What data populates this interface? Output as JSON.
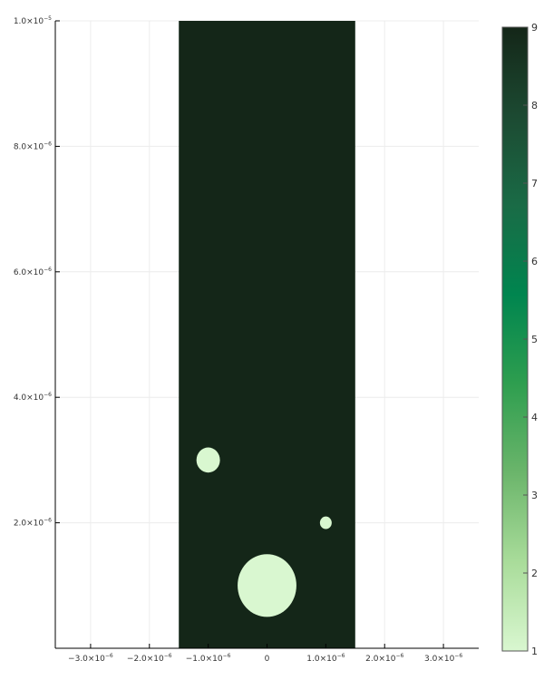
{
  "chart_data": {
    "type": "heatmap",
    "title": "",
    "xlabel": "",
    "ylabel": "",
    "xlim": [
      -3.6e-06,
      3.6e-06
    ],
    "ylim": [
      0,
      1e-05
    ],
    "grid": true,
    "x_ticks": [
      {
        "value": -3e-06,
        "mantissa": "−3.0×10",
        "exp": "−6"
      },
      {
        "value": -2e-06,
        "mantissa": "−2.0×10",
        "exp": "−6"
      },
      {
        "value": -1e-06,
        "mantissa": "−1.0×10",
        "exp": "−6"
      },
      {
        "value": 0,
        "mantissa": "0",
        "exp": ""
      },
      {
        "value": 1e-06,
        "mantissa": "1.0×10",
        "exp": "−6"
      },
      {
        "value": 2e-06,
        "mantissa": "2.0×10",
        "exp": "−6"
      },
      {
        "value": 3e-06,
        "mantissa": "3.0×10",
        "exp": "−6"
      }
    ],
    "y_ticks": [
      {
        "value": 2e-06,
        "mantissa": "2.0×10",
        "exp": "−6"
      },
      {
        "value": 4e-06,
        "mantissa": "4.0×10",
        "exp": "−6"
      },
      {
        "value": 6e-06,
        "mantissa": "6.0×10",
        "exp": "−6"
      },
      {
        "value": 8e-06,
        "mantissa": "8.0×10",
        "exp": "−6"
      },
      {
        "value": 1e-05,
        "mantissa": "1.0×10",
        "exp": "−5"
      }
    ],
    "background_region": {
      "x": [
        -1.5e-06,
        1.5e-06
      ],
      "y": [
        0,
        1e-05
      ],
      "value": 9
    },
    "circles": [
      {
        "name": "large",
        "cx": 0,
        "cy": 1e-06,
        "r": 5e-07,
        "value": 1
      },
      {
        "name": "medium",
        "cx": -1e-06,
        "cy": 3e-06,
        "r": 2e-07,
        "value": 1
      },
      {
        "name": "small",
        "cx": 1e-06,
        "cy": 2e-06,
        "r": 1e-07,
        "value": 1
      }
    ],
    "colorbar": {
      "min": 1,
      "max": 9,
      "tick_labels": [
        "1",
        "2",
        "3",
        "4",
        "5",
        "6",
        "7",
        "8",
        "9"
      ],
      "colormap": "Greens",
      "stops": [
        "#d9f7d0",
        "#a9dc9a",
        "#6bb56b",
        "#2e9e4f",
        "#00854f",
        "#1a6b46",
        "#1c4a32",
        "#142618"
      ]
    }
  }
}
